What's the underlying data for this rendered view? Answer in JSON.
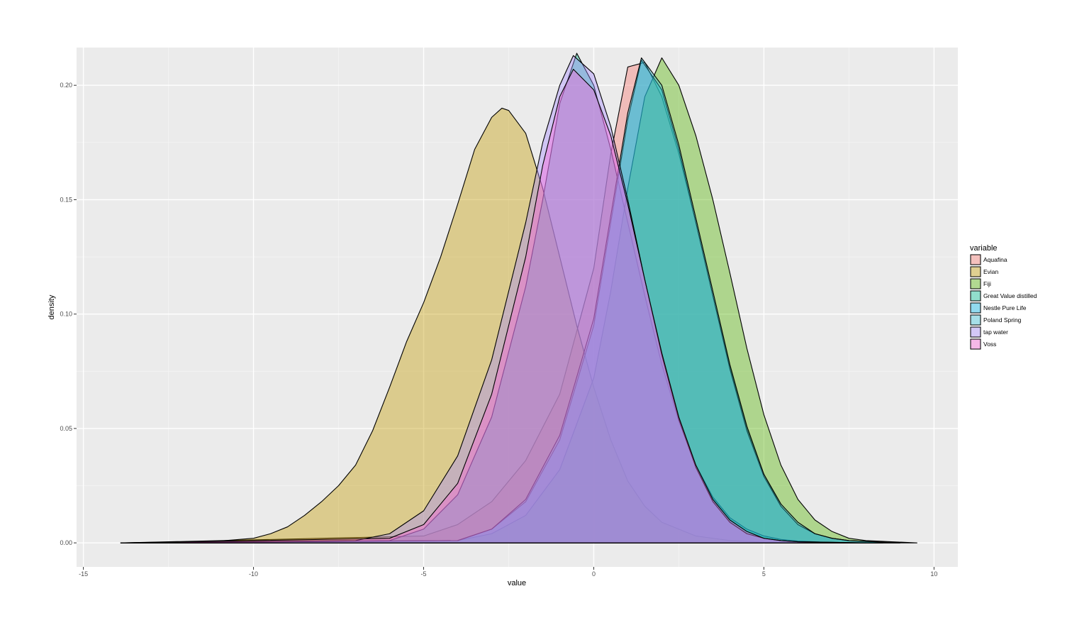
{
  "chart_data": {
    "type": "area",
    "xlabel": "value",
    "ylabel": "density",
    "xlim": [
      -15.2,
      10.7
    ],
    "ylim": [
      -0.0105,
      0.2165
    ],
    "x_ticks": [
      -15,
      -10,
      -5,
      0,
      5,
      10
    ],
    "x_tick_labels": [
      "-15",
      "-10",
      "-5",
      "0",
      "5",
      "10"
    ],
    "y_ticks": [
      0.0,
      0.05,
      0.1,
      0.15,
      0.2
    ],
    "y_tick_labels": [
      "0.00",
      "0.05",
      "0.10",
      "0.15",
      "0.20"
    ],
    "grid": true,
    "legend": {
      "title": "variable",
      "position": "right"
    },
    "fill_opacity": 0.4,
    "outline_color": "#000000",
    "series": [
      {
        "name": "Aquafina",
        "color": "#F8766D",
        "x": [
          -13.9,
          -5,
          -4,
          -3,
          -2,
          -1,
          0,
          0.5,
          1,
          1.5,
          2,
          2.5,
          3,
          3.5,
          4,
          4.5,
          5,
          5.5,
          6,
          6.5,
          7,
          7.5,
          8,
          8.5
        ],
        "y": [
          0,
          0.003,
          0.008,
          0.018,
          0.036,
          0.065,
          0.12,
          0.17,
          0.208,
          0.21,
          0.195,
          0.17,
          0.14,
          0.108,
          0.077,
          0.05,
          0.03,
          0.016,
          0.008,
          0.004,
          0.002,
          0.001,
          0.0005,
          0
        ]
      },
      {
        "name": "Evian",
        "color": "#C49A00",
        "x": [
          -13.9,
          -12,
          -11,
          -10,
          -9.5,
          -9,
          -8.5,
          -8,
          -7.5,
          -7,
          -6.5,
          -6,
          -5.5,
          -5,
          -4.5,
          -4,
          -3.5,
          -3,
          -2.7,
          -2.5,
          -2,
          -1.5,
          -1,
          -0.5,
          0,
          0.5,
          1,
          1.5,
          2,
          3,
          4,
          5,
          6,
          8.5
        ],
        "y": [
          0,
          0.0002,
          0.0008,
          0.002,
          0.004,
          0.007,
          0.012,
          0.018,
          0.025,
          0.034,
          0.049,
          0.068,
          0.088,
          0.105,
          0.125,
          0.148,
          0.172,
          0.186,
          0.19,
          0.189,
          0.179,
          0.155,
          0.125,
          0.095,
          0.068,
          0.045,
          0.027,
          0.016,
          0.009,
          0.003,
          0.001,
          0.0003,
          0.0001,
          0
        ]
      },
      {
        "name": "Fiji",
        "color": "#53B400",
        "x": [
          -13.9,
          -4,
          -3,
          -2,
          -1,
          0,
          0.5,
          1,
          1.5,
          2,
          2.5,
          3,
          3.5,
          4,
          4.5,
          5,
          5.5,
          6,
          6.5,
          7,
          7.5,
          8,
          9.5
        ],
        "y": [
          0,
          0.001,
          0.004,
          0.012,
          0.032,
          0.072,
          0.11,
          0.155,
          0.195,
          0.212,
          0.2,
          0.178,
          0.15,
          0.118,
          0.085,
          0.056,
          0.034,
          0.019,
          0.01,
          0.005,
          0.002,
          0.001,
          0
        ]
      },
      {
        "name": "Great Value distilled",
        "color": "#00C094",
        "x": [
          -13.9,
          -6,
          -5,
          -4,
          -3,
          -2,
          -1.5,
          -1,
          -0.5,
          0,
          0.5,
          1,
          1.5,
          2,
          2.5,
          3,
          3.5,
          4,
          4.5,
          5,
          5.5,
          6,
          7,
          8.5
        ],
        "y": [
          0,
          0.001,
          0.006,
          0.021,
          0.055,
          0.112,
          0.15,
          0.192,
          0.214,
          0.2,
          0.172,
          0.14,
          0.108,
          0.078,
          0.053,
          0.034,
          0.02,
          0.011,
          0.006,
          0.003,
          0.0015,
          0.0008,
          0.0002,
          0
        ]
      },
      {
        "name": "Nestle Pure Life",
        "color": "#00B6EB",
        "x": [
          -13.9,
          -4,
          -3,
          -2,
          -1,
          0,
          0.5,
          1,
          1.4,
          2,
          2.5,
          3,
          3.5,
          4,
          4.5,
          5,
          5.5,
          6,
          6.5,
          7,
          7.5,
          9
        ],
        "y": [
          0,
          0.001,
          0.006,
          0.018,
          0.045,
          0.095,
          0.14,
          0.185,
          0.211,
          0.198,
          0.172,
          0.14,
          0.108,
          0.076,
          0.049,
          0.029,
          0.016,
          0.008,
          0.004,
          0.002,
          0.001,
          0
        ]
      },
      {
        "name": "Poland Spring",
        "color": "#34C4D9",
        "x": [
          -13.9,
          -4,
          -3,
          -2,
          -1,
          0,
          0.5,
          1,
          1.4,
          2,
          2.5,
          3,
          3.5,
          4,
          4.5,
          5,
          5.5,
          6,
          6.5,
          7,
          7.5,
          9
        ],
        "y": [
          0,
          0.001,
          0.006,
          0.019,
          0.047,
          0.098,
          0.143,
          0.188,
          0.212,
          0.2,
          0.174,
          0.142,
          0.11,
          0.078,
          0.051,
          0.03,
          0.017,
          0.009,
          0.004,
          0.002,
          0.001,
          0
        ]
      },
      {
        "name": "tap water",
        "color": "#A58AFF",
        "x": [
          -13.9,
          -7,
          -6,
          -5,
          -4,
          -3,
          -2,
          -1.5,
          -1,
          -0.6,
          0,
          0.5,
          1,
          1.5,
          2,
          2.5,
          3,
          3.5,
          4,
          4.5,
          5,
          5.5,
          6,
          8
        ],
        "y": [
          0,
          0.001,
          0.004,
          0.014,
          0.038,
          0.08,
          0.14,
          0.175,
          0.2,
          0.213,
          0.205,
          0.182,
          0.15,
          0.115,
          0.082,
          0.054,
          0.033,
          0.018,
          0.009,
          0.004,
          0.002,
          0.001,
          0.0005,
          0
        ]
      },
      {
        "name": "Voss",
        "color": "#FB61D7",
        "x": [
          -13.9,
          -6,
          -5,
          -4,
          -3,
          -2,
          -1.5,
          -1,
          -0.6,
          0,
          0.5,
          1,
          1.5,
          2,
          2.5,
          3,
          3.5,
          4,
          4.5,
          5,
          5.5,
          6,
          8
        ],
        "y": [
          0,
          0.002,
          0.008,
          0.026,
          0.065,
          0.125,
          0.165,
          0.195,
          0.207,
          0.198,
          0.178,
          0.148,
          0.115,
          0.083,
          0.055,
          0.034,
          0.019,
          0.01,
          0.005,
          0.002,
          0.001,
          0.0005,
          0
        ]
      }
    ]
  }
}
